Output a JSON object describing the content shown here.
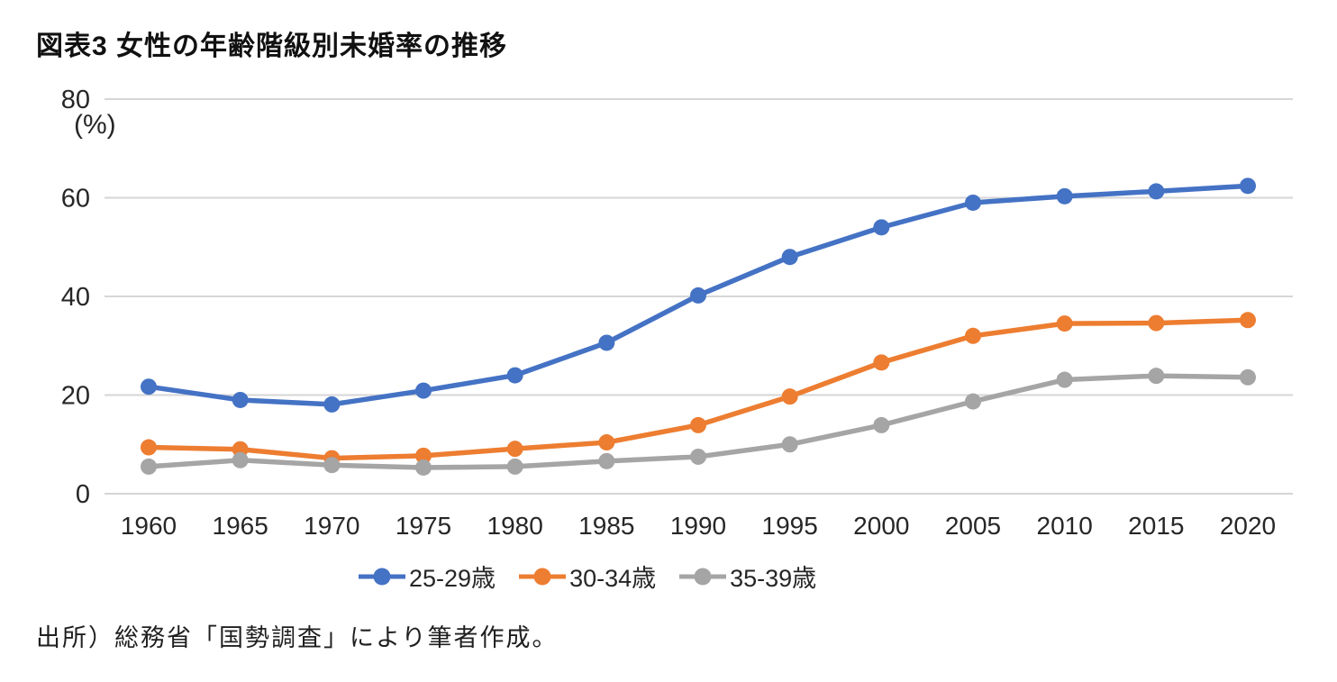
{
  "page": {
    "title": "図表3 女性の年齢階級別未婚率の推移",
    "source_note": "出所）総務省「国勢調査」により筆者作成。"
  },
  "chart_data": {
    "type": "line",
    "title": "図表3 女性の年齢階級別未婚率の推移",
    "ylabel": "(%)",
    "xlabel": "",
    "categories": [
      1960,
      1965,
      1970,
      1975,
      1980,
      1985,
      1990,
      1995,
      2000,
      2005,
      2010,
      2015,
      2020
    ],
    "series": [
      {
        "name": "25-29歳",
        "color": "#4472C4",
        "values": [
          21.7,
          19.0,
          18.1,
          20.9,
          24.0,
          30.6,
          40.2,
          48.0,
          54.0,
          59.0,
          60.3,
          61.3,
          62.4
        ]
      },
      {
        "name": "30-34歳",
        "color": "#ED7D31",
        "values": [
          9.4,
          9.0,
          7.2,
          7.7,
          9.1,
          10.4,
          13.9,
          19.7,
          26.6,
          32.0,
          34.5,
          34.6,
          35.2
        ]
      },
      {
        "name": "35-39歳",
        "color": "#A5A5A5",
        "values": [
          5.5,
          6.8,
          5.8,
          5.3,
          5.5,
          6.6,
          7.5,
          10.0,
          13.9,
          18.7,
          23.1,
          23.9,
          23.6
        ]
      }
    ],
    "ylim": [
      0,
      80
    ],
    "yticks": [
      0,
      20,
      40,
      60,
      80
    ],
    "grid": true,
    "legend_position": "bottom",
    "style": {
      "grid_color": "#D6D6D6",
      "axis_text_color": "#262626",
      "line_width": 5.5,
      "marker_radius": 9
    }
  }
}
